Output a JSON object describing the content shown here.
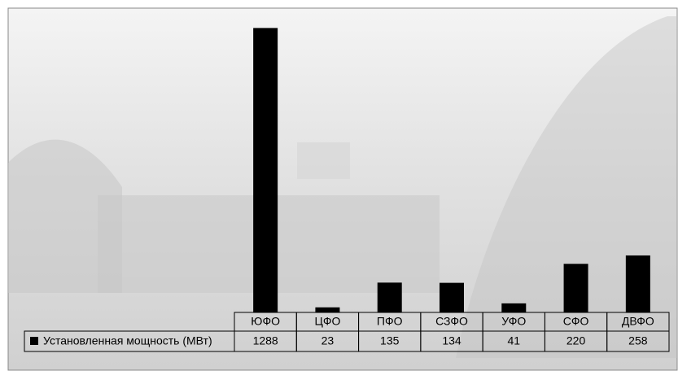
{
  "chart_data": {
    "type": "bar",
    "categories": [
      "ЮФО",
      "ЦФО",
      "ПФО",
      "СЗФО",
      "УФО",
      "СФО",
      "ДВФО"
    ],
    "series": [
      {
        "name": "Установленная мощность (МВт)",
        "color": "#000000",
        "values": [
          1288,
          23,
          135,
          134,
          41,
          220,
          258
        ]
      }
    ],
    "ylim": [
      0,
      1400
    ]
  }
}
